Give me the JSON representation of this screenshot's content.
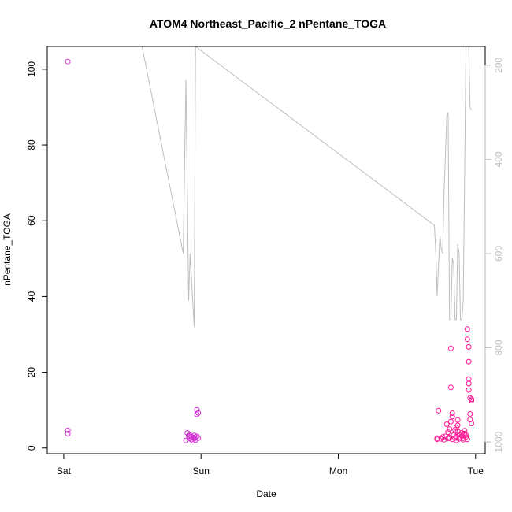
{
  "chart_data": {
    "type": "scatter",
    "title": "ATOM4 Northeast_Pacific_2 nPentane_TOGA",
    "xlabel": "Date",
    "ylabel": "nPentane_TOGA",
    "x_ticks": [
      "Sat",
      "Sun",
      "Mon",
      "Tue"
    ],
    "x_units": "days since start of Sat",
    "xlim": [
      -0.12,
      3.07
    ],
    "ylim": [
      -1.5,
      106
    ],
    "y_ticks": [
      0,
      20,
      40,
      60,
      80,
      100
    ],
    "y2_ticks": [
      200,
      400,
      600,
      800,
      1000
    ],
    "y2lim": [
      1025,
      160
    ],
    "grid": false,
    "colors": {
      "points_left": "#d02ed0",
      "points_right": "#ff1493",
      "line": "#bebebe",
      "axis": "#000000",
      "right_axis": "#bebebe"
    },
    "series": [
      {
        "type": "points",
        "axis": "left",
        "points": [
          [
            0.03,
            102
          ],
          [
            0.03,
            4.7
          ],
          [
            0.03,
            3.8
          ],
          [
            0.89,
            2.0
          ],
          [
            0.9,
            4.0
          ],
          [
            0.91,
            3.2
          ],
          [
            0.92,
            2.6
          ],
          [
            0.92,
            3.4
          ],
          [
            0.93,
            2.2
          ],
          [
            0.93,
            3.0
          ],
          [
            0.94,
            2.8
          ],
          [
            0.94,
            1.9
          ],
          [
            0.95,
            2.5
          ],
          [
            0.95,
            3.3
          ],
          [
            0.96,
            2.1
          ],
          [
            0.96,
            2.9
          ],
          [
            0.97,
            3.1
          ],
          [
            0.97,
            10.1
          ],
          [
            0.97,
            8.9
          ],
          [
            0.98,
            2.6
          ],
          [
            0.98,
            9.3
          ],
          [
            2.72,
            2.3
          ],
          [
            2.72,
            2.6
          ],
          [
            2.73,
            9.9
          ],
          [
            2.75,
            2.4
          ],
          [
            2.76,
            2.9
          ],
          [
            2.77,
            2.2
          ],
          [
            2.78,
            3.1
          ],
          [
            2.79,
            6.3
          ],
          [
            2.8,
            2.5
          ],
          [
            2.8,
            4.2
          ],
          [
            2.81,
            2.8
          ],
          [
            2.81,
            5.0
          ],
          [
            2.82,
            7.0
          ],
          [
            2.82,
            16.0
          ],
          [
            2.82,
            26.3
          ],
          [
            2.83,
            8.3
          ],
          [
            2.83,
            9.2
          ],
          [
            2.83,
            2.3
          ],
          [
            2.84,
            3.4
          ],
          [
            2.85,
            4.8
          ],
          [
            2.85,
            2.6
          ],
          [
            2.86,
            5.4
          ],
          [
            2.86,
            2.0
          ],
          [
            2.86,
            3.0
          ],
          [
            2.87,
            7.4
          ],
          [
            2.87,
            4.4
          ],
          [
            2.87,
            6.0
          ],
          [
            2.88,
            2.4
          ],
          [
            2.88,
            3.6
          ],
          [
            2.89,
            2.8
          ],
          [
            2.9,
            4.0
          ],
          [
            2.9,
            3.2
          ],
          [
            2.91,
            2.6
          ],
          [
            2.91,
            2.2
          ],
          [
            2.92,
            3.8
          ],
          [
            2.92,
            4.6
          ],
          [
            2.93,
            2.9
          ],
          [
            2.93,
            3.4
          ],
          [
            2.94,
            2.3
          ],
          [
            2.94,
            31.4
          ],
          [
            2.94,
            28.7
          ],
          [
            2.95,
            26.7
          ],
          [
            2.95,
            22.8
          ],
          [
            2.95,
            18.2
          ],
          [
            2.95,
            17.0
          ],
          [
            2.95,
            15.3
          ],
          [
            2.96,
            13.2
          ],
          [
            2.96,
            9.0
          ],
          [
            2.96,
            7.5
          ],
          [
            2.97,
            12.6
          ],
          [
            2.97,
            12.9
          ],
          [
            2.97,
            6.5
          ]
        ]
      },
      {
        "type": "line",
        "axis": "right",
        "name": "",
        "points": [
          [
            0.03,
            160
          ],
          [
            0.57,
            160
          ],
          [
            0.87,
            600
          ],
          [
            0.89,
            230
          ],
          [
            0.91,
            700
          ],
          [
            0.92,
            600
          ],
          [
            0.95,
            755
          ],
          [
            0.96,
            160
          ],
          [
            2.7,
            540
          ],
          [
            2.71,
            600
          ],
          [
            2.72,
            690
          ],
          [
            2.74,
            560
          ],
          [
            2.75,
            590
          ],
          [
            2.76,
            600
          ],
          [
            2.77,
            475
          ],
          [
            2.79,
            310
          ],
          [
            2.8,
            300
          ],
          [
            2.81,
            740
          ],
          [
            2.82,
            740
          ],
          [
            2.83,
            610
          ],
          [
            2.84,
            620
          ],
          [
            2.85,
            740
          ],
          [
            2.86,
            740
          ],
          [
            2.87,
            580
          ],
          [
            2.88,
            600
          ],
          [
            2.89,
            740
          ],
          [
            2.9,
            740
          ],
          [
            2.91,
            700
          ],
          [
            2.92,
            430
          ],
          [
            2.93,
            160
          ],
          [
            2.95,
            160
          ],
          [
            2.96,
            290
          ],
          [
            2.97,
            295
          ]
        ]
      }
    ]
  }
}
